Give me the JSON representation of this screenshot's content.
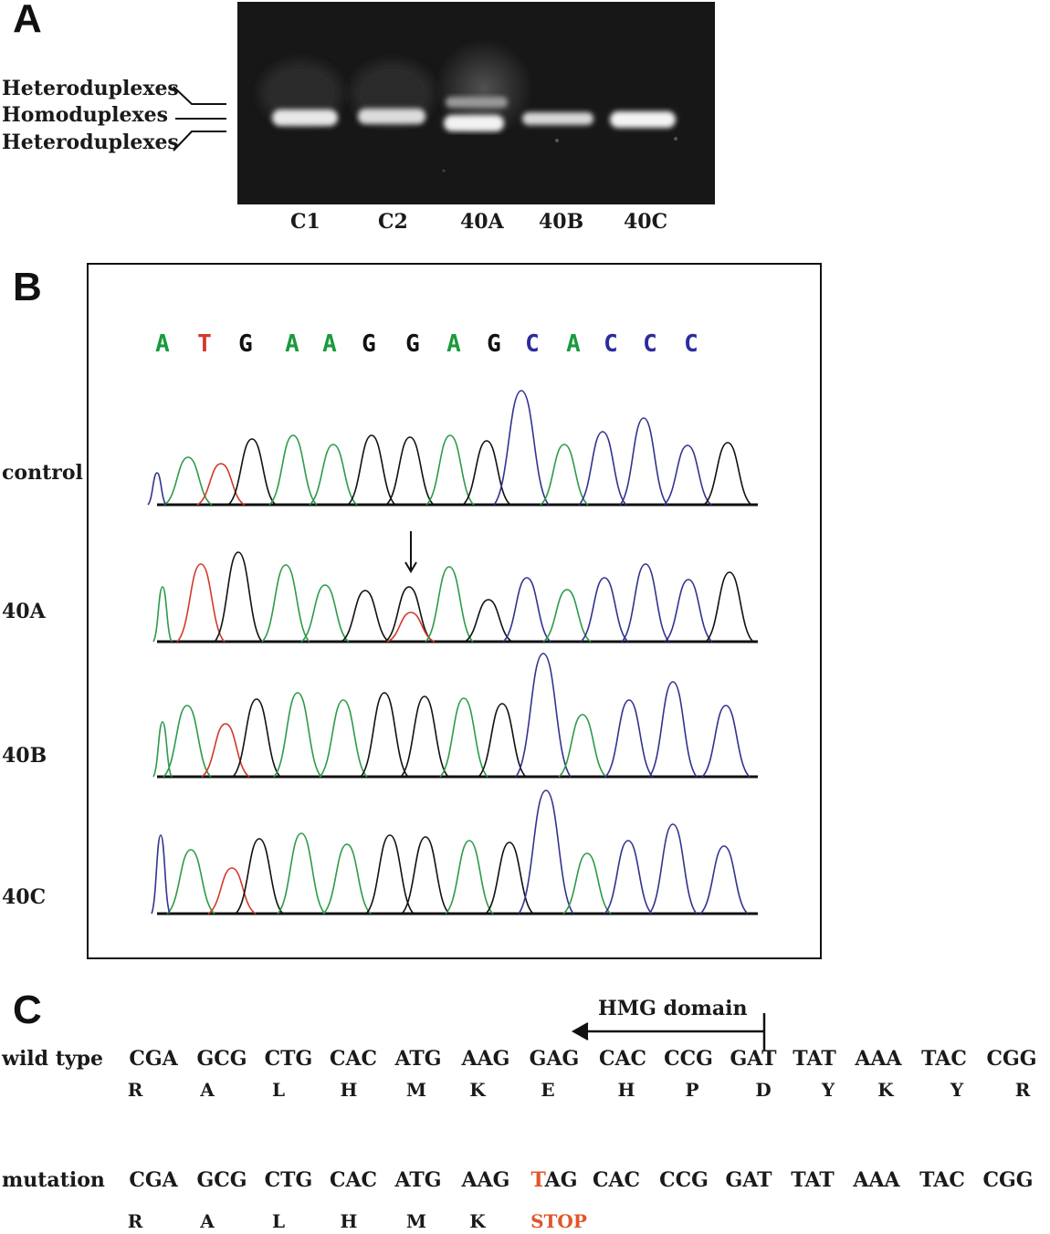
{
  "panel_a": {
    "letter": "A",
    "band_labels": [
      "Heteroduplexes",
      "Homoduplexes",
      "Heteroduplexes"
    ],
    "lanes": [
      "C1",
      "C2",
      "40A",
      "40B",
      "40C"
    ]
  },
  "panel_b": {
    "letter": "B",
    "bases": [
      {
        "b": "A",
        "color": "#1a9a3c"
      },
      {
        "b": "T",
        "color": "#d23a2a"
      },
      {
        "b": "G",
        "color": "#111111"
      },
      {
        "b": "A",
        "color": "#1a9a3c"
      },
      {
        "b": "A",
        "color": "#1a9a3c"
      },
      {
        "b": "G",
        "color": "#111111"
      },
      {
        "b": "G",
        "color": "#111111"
      },
      {
        "b": "A",
        "color": "#1a9a3c"
      },
      {
        "b": "G",
        "color": "#111111"
      },
      {
        "b": "C",
        "color": "#2c2c9c"
      },
      {
        "b": "A",
        "color": "#1a9a3c"
      },
      {
        "b": "C",
        "color": "#2c2c9c"
      },
      {
        "b": "C",
        "color": "#2c2c9c"
      },
      {
        "b": "C",
        "color": "#2c2c9c"
      }
    ],
    "traces": [
      "control",
      "40A",
      "40B",
      "40C"
    ]
  },
  "panel_c": {
    "letter": "C",
    "domain_label": "HMG domain",
    "wild_type": {
      "label": "wild type",
      "codons": [
        "CGA",
        "GCG",
        "CTG",
        "CAC",
        "ATG",
        "AAG",
        "GAG",
        "CAC",
        "CCG",
        "GAT",
        "TAT",
        "AAA",
        "TAC",
        "CGG"
      ],
      "aminoacids": [
        "R",
        "A",
        "L",
        "H",
        "M",
        "K",
        "E",
        "H",
        "P",
        "D",
        "Y",
        "K",
        "Y",
        "R"
      ]
    },
    "mutation": {
      "label": "mutation",
      "codons": [
        "CGA",
        "GCG",
        "CTG",
        "CAC",
        "ATG",
        "AAG",
        "TAG",
        "CAC",
        "CCG",
        "GAT",
        "TAT",
        "AAA",
        "TAC",
        "CGG"
      ],
      "aminoacids": [
        "R",
        "A",
        "L",
        "H",
        "M",
        "K",
        "STOP"
      ],
      "mutated_base": "T",
      "mutated_codon_rest": "AG",
      "highlight_color": "#e0562a"
    }
  }
}
